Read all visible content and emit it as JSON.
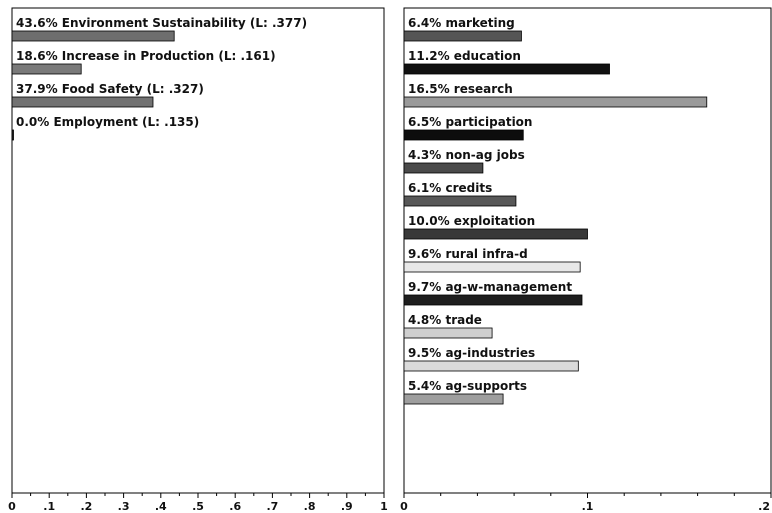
{
  "chart_data": [
    {
      "type": "bar",
      "orientation": "horizontal",
      "categories": [
        "43.6% Environment Sustainability (L: .377)",
        "18.6% Increase in Production (L: .161)",
        "37.9% Food Safety (L: .327)",
        "0.0% Employment (L: .135)"
      ],
      "values": [
        0.436,
        0.186,
        0.379,
        0.0
      ],
      "bar_colors": [
        "#6e6e6e",
        "#7a7a7a",
        "#727272",
        "#222222"
      ],
      "xlim": [
        0,
        1
      ],
      "xticks": [
        "0",
        ".1",
        ".2",
        ".3",
        ".4",
        ".5",
        ".6",
        ".7",
        ".8",
        ".9",
        "1"
      ],
      "grid": false
    },
    {
      "type": "bar",
      "orientation": "horizontal",
      "categories": [
        "6.4% marketing",
        "11.2% education",
        "16.5% research",
        "6.5% participation",
        "4.3% non-ag jobs",
        "6.1% credits",
        "10.0% exploitation",
        "9.6% rural infra-d",
        "9.7% ag-w-management",
        "4.8% trade",
        "9.5% ag-industries",
        "5.4% ag-supports"
      ],
      "values": [
        0.064,
        0.112,
        0.165,
        0.065,
        0.043,
        0.061,
        0.1,
        0.096,
        0.097,
        0.048,
        0.095,
        0.054
      ],
      "bar_colors": [
        "#555555",
        "#111111",
        "#9a9a9a",
        "#0d0d0d",
        "#4a4a4a",
        "#585858",
        "#383838",
        "#e8e8e8",
        "#1e1e1e",
        "#cfcfcf",
        "#dadada",
        "#9e9e9e"
      ],
      "xlim": [
        0,
        0.2
      ],
      "xticks": [
        "0",
        ".1",
        ".2"
      ],
      "grid": false
    }
  ]
}
